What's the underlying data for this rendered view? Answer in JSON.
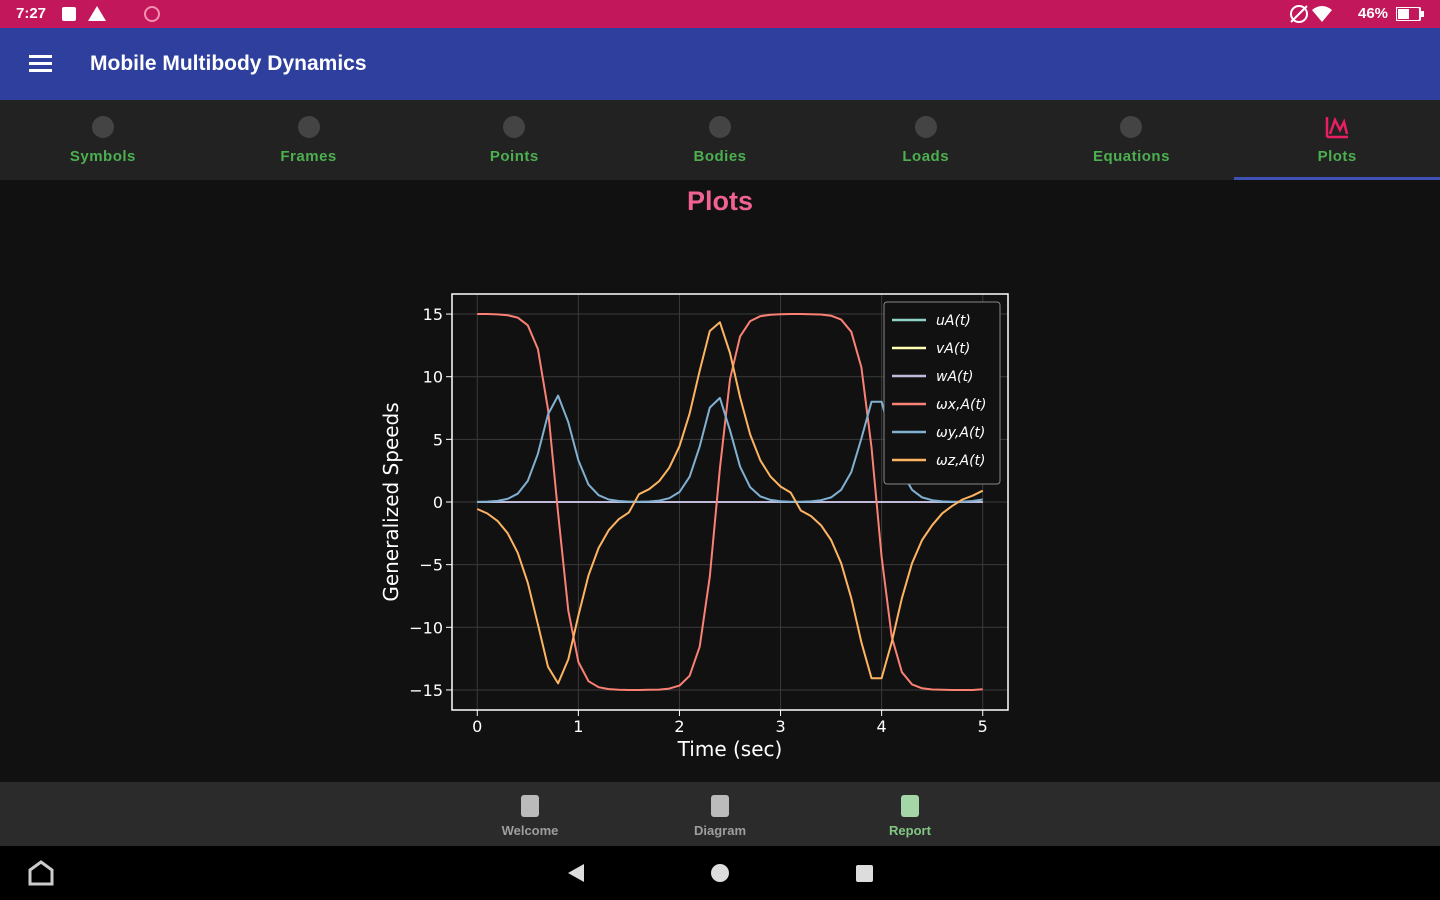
{
  "status_bar": {
    "time": "7:27",
    "battery": "46%"
  },
  "app_bar": {
    "title": "Mobile Multibody Dynamics"
  },
  "tabs": [
    "Symbols",
    "Frames",
    "Points",
    "Bodies",
    "Loads",
    "Equations",
    "Plots"
  ],
  "page_title": "Plots",
  "bottom_nav": [
    "Welcome",
    "Diagram",
    "Report"
  ],
  "chart_data": {
    "type": "line",
    "xlabel": "Time (sec)",
    "ylabel": "Generalized Speeds",
    "grid": true,
    "legend": "upper right",
    "xlim": [
      -0.25,
      5.25
    ],
    "ylim": [
      -16.6,
      16.6
    ],
    "xticks": [
      0,
      1,
      2,
      3,
      4,
      5
    ],
    "yticks": [
      {
        "value": -15,
        "label": "−15"
      },
      {
        "value": -10,
        "label": "−10"
      },
      {
        "value": -5,
        "label": "−5"
      },
      0,
      5,
      10,
      15
    ],
    "x": [
      0,
      0.1,
      0.2,
      0.3,
      0.4,
      0.5,
      0.6,
      0.7,
      0.8,
      0.9,
      1,
      1.1,
      1.2,
      1.3,
      1.4,
      1.5,
      1.6,
      1.7,
      1.8,
      1.9,
      2,
      2.1,
      2.2,
      2.3,
      2.4,
      2.5,
      2.6,
      2.7,
      2.8,
      2.9,
      3,
      3.1,
      3.2,
      3.3,
      3.4,
      3.5,
      3.6,
      3.7,
      3.8,
      3.9,
      4,
      4.1,
      4.2,
      4.3,
      4.4,
      4.5,
      4.6,
      4.7,
      4.8,
      4.9,
      5
    ],
    "series": [
      {
        "name": "uA(t)",
        "color": "#8dd3c7",
        "values": [
          0,
          0,
          0,
          0,
          0,
          0,
          0,
          0,
          0,
          0,
          0,
          0,
          0,
          0,
          0,
          0,
          0,
          0,
          0,
          0,
          0,
          0,
          0,
          0,
          0,
          0,
          0,
          0,
          0,
          0,
          0,
          0,
          0,
          0,
          0,
          0,
          0,
          0,
          0,
          0,
          0,
          0,
          0,
          0,
          0,
          0,
          0,
          0,
          0,
          0,
          0
        ]
      },
      {
        "name": "vA(t)",
        "color": "#feffb3",
        "values": [
          0,
          0,
          0,
          0,
          0,
          0,
          0,
          0,
          0,
          0,
          0,
          0,
          0,
          0,
          0,
          0,
          0,
          0,
          0,
          0,
          0,
          0,
          0,
          0,
          0,
          0,
          0,
          0,
          0,
          0,
          0,
          0,
          0,
          0,
          0,
          0,
          0,
          0,
          0,
          0,
          0,
          0,
          0,
          0,
          0,
          0,
          0,
          0,
          0,
          0,
          0
        ]
      },
      {
        "name": "wA(t)",
        "color": "#bfbbd9",
        "values": [
          0,
          0,
          0,
          0,
          0,
          0,
          0,
          0,
          0,
          0,
          0,
          0,
          0,
          0,
          0,
          0,
          0,
          0,
          0,
          0,
          0,
          0,
          0,
          0,
          0,
          0,
          0,
          0,
          0,
          0,
          0,
          0,
          0,
          0,
          0,
          0,
          0,
          0,
          0,
          0,
          0,
          0,
          0,
          0,
          0,
          0,
          0,
          0,
          0,
          0,
          0
        ]
      },
      {
        "name": "ωx,A(t)",
        "color": "#fa8174",
        "values": [
          15,
          15,
          14.97,
          14.91,
          14.72,
          14.1,
          12.21,
          7.4,
          -0.9,
          -8.67,
          -12.77,
          -14.3,
          -14.78,
          -14.93,
          -14.98,
          -15,
          -15,
          -14.99,
          -14.97,
          -14.89,
          -14.65,
          -13.87,
          -11.55,
          -5.96,
          2.67,
          9.8,
          13.22,
          14.44,
          14.83,
          14.95,
          14.99,
          15,
          15,
          14.99,
          14.96,
          14.87,
          14.56,
          13.58,
          10.74,
          4.37,
          -4.37,
          -10.74,
          -13.58,
          -14.56,
          -14.87,
          -14.96,
          -14.99,
          -15,
          -15,
          -15,
          -14.95
        ]
      },
      {
        "name": "ωy,A(t)",
        "color": "#81b1d2",
        "values": [
          0.01,
          0.03,
          0.09,
          0.25,
          0.66,
          1.68,
          3.85,
          6.99,
          8.49,
          6.37,
          3.32,
          1.39,
          0.54,
          0.2,
          0.08,
          0.03,
          0.02,
          0.04,
          0.11,
          0.3,
          0.8,
          2.01,
          4.44,
          7.53,
          8.31,
          5.72,
          2.82,
          1.17,
          0.45,
          0.17,
          0.06,
          0.02,
          0.02,
          0.05,
          0.14,
          0.37,
          0.97,
          2.39,
          5.07,
          8,
          8,
          5.07,
          2.39,
          0.97,
          0.37,
          0.14,
          0.05,
          0.02,
          0.03,
          0.08,
          0.2
        ]
      },
      {
        "name": "ωz,A(t)",
        "color": "#fdb462",
        "values": [
          -0.56,
          -0.92,
          -1.51,
          -2.48,
          -4.05,
          -6.45,
          -9.76,
          -13.15,
          -14.48,
          -12.56,
          -9.06,
          -5.86,
          -3.67,
          -2.25,
          -1.37,
          -0.83,
          0.62,
          1.02,
          1.67,
          2.74,
          4.45,
          7.05,
          10.48,
          13.65,
          14.34,
          11.89,
          8.35,
          5.38,
          3.33,
          2.04,
          1.24,
          0.75,
          -0.68,
          -1.12,
          -1.85,
          -3.03,
          -4.89,
          -7.68,
          -11.2,
          -14.06,
          -14.06,
          -11.2,
          -7.68,
          -4.89,
          -3.03,
          -1.85,
          -0.9,
          -0.3,
          0.2,
          0.5,
          0.9
        ]
      }
    ]
  }
}
